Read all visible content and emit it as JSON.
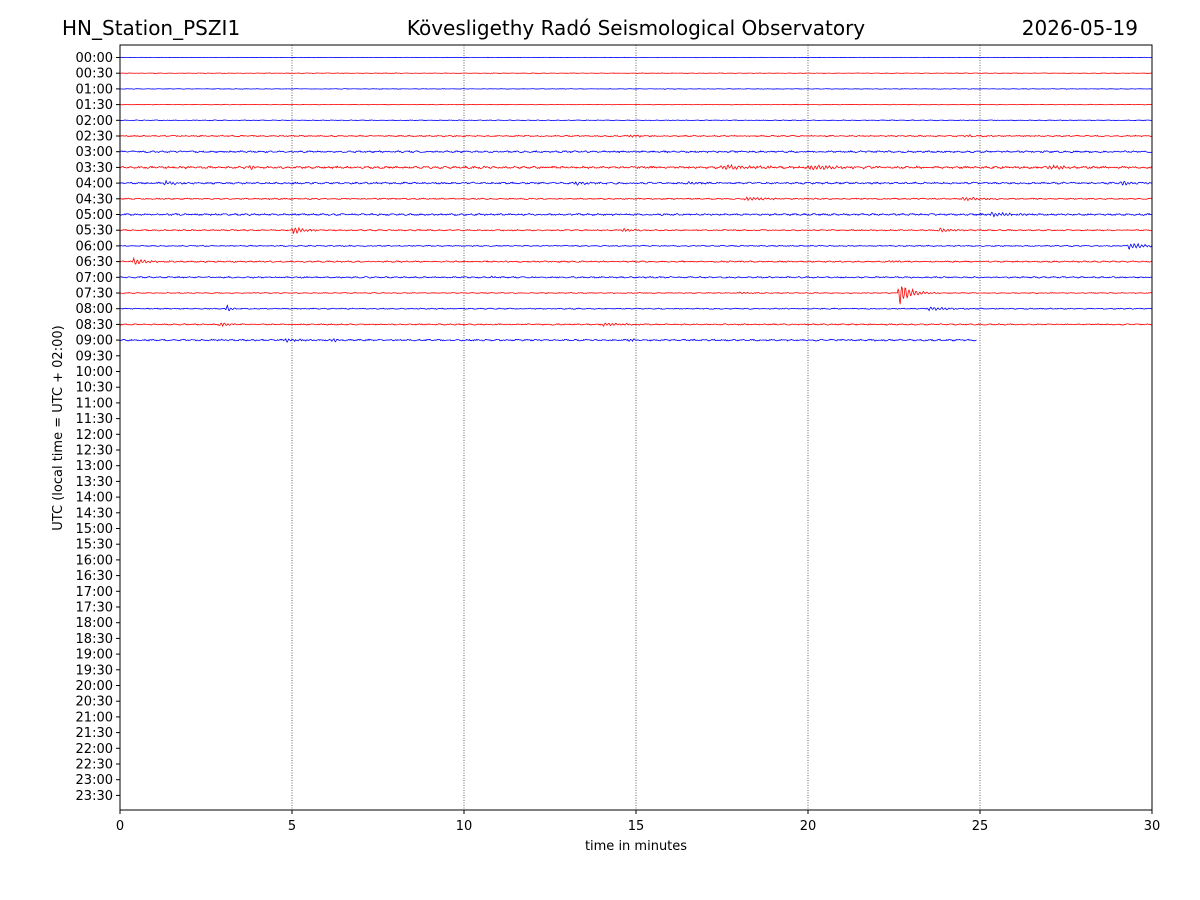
{
  "header": {
    "station": "HN_Station_PSZI1",
    "title": "Kövesligethy Radó Seismological Observatory",
    "date": "2026-05-19"
  },
  "chart_data": {
    "type": "line",
    "xlabel": "time in minutes",
    "ylabel": "UTC (local time = UTC + 02:00)",
    "xlim": [
      0,
      30
    ],
    "x_ticks": [
      0,
      5,
      10,
      15,
      20,
      25,
      30
    ],
    "grid": "vertical dotted lines at each x tick",
    "row_labels": [
      "00:00",
      "00:30",
      "01:00",
      "01:30",
      "02:00",
      "02:30",
      "03:00",
      "03:30",
      "04:00",
      "04:30",
      "05:00",
      "05:30",
      "06:00",
      "06:30",
      "07:00",
      "07:30",
      "08:00",
      "08:30",
      "09:00",
      "09:30",
      "10:00",
      "10:30",
      "11:00",
      "11:30",
      "12:00",
      "12:30",
      "13:00",
      "13:30",
      "14:00",
      "14:30",
      "15:00",
      "15:30",
      "16:00",
      "16:30",
      "17:00",
      "17:30",
      "18:00",
      "18:30",
      "19:00",
      "19:30",
      "20:00",
      "20:30",
      "21:00",
      "21:30",
      "22:00",
      "22:30",
      "23:00",
      "23:30"
    ],
    "colors": {
      "full_hour": "#0000ff",
      "half_hour": "#ff0000",
      "frame": "#000000"
    },
    "traces": [
      {
        "row": 0,
        "end_minute": 30,
        "noise": 0.2,
        "events": []
      },
      {
        "row": 1,
        "end_minute": 30,
        "noise": 0.3,
        "events": []
      },
      {
        "row": 2,
        "end_minute": 30,
        "noise": 0.3,
        "events": []
      },
      {
        "row": 3,
        "end_minute": 30,
        "noise": 0.3,
        "events": []
      },
      {
        "row": 4,
        "end_minute": 30,
        "noise": 0.4,
        "events": []
      },
      {
        "row": 5,
        "end_minute": 30,
        "noise": 0.7,
        "events": [
          {
            "t": 14.8,
            "amp": 1.5,
            "dur": 0.6
          },
          {
            "t": 24.5,
            "amp": 1.0,
            "dur": 1.0
          }
        ]
      },
      {
        "row": 6,
        "end_minute": 30,
        "noise": 1.0,
        "events": []
      },
      {
        "row": 7,
        "end_minute": 30,
        "noise": 1.2,
        "events": [
          {
            "t": 3.8,
            "amp": 3.5,
            "dur": 0.15
          },
          {
            "t": 17.5,
            "amp": 2.5,
            "dur": 1.5
          },
          {
            "t": 20.0,
            "amp": 2.5,
            "dur": 1.5
          },
          {
            "t": 27.0,
            "amp": 2.0,
            "dur": 1.0
          }
        ]
      },
      {
        "row": 8,
        "end_minute": 30,
        "noise": 1.0,
        "events": [
          {
            "t": 1.3,
            "amp": 2.5,
            "dur": 0.6
          },
          {
            "t": 13.2,
            "amp": 2.5,
            "dur": 0.5
          },
          {
            "t": 16.5,
            "amp": 1.5,
            "dur": 0.5
          },
          {
            "t": 29.1,
            "amp": 3.0,
            "dur": 0.5
          }
        ]
      },
      {
        "row": 9,
        "end_minute": 30,
        "noise": 0.7,
        "events": [
          {
            "t": 18.2,
            "amp": 2.0,
            "dur": 1.0
          },
          {
            "t": 24.5,
            "amp": 2.5,
            "dur": 0.8
          }
        ]
      },
      {
        "row": 10,
        "end_minute": 30,
        "noise": 1.0,
        "events": [
          {
            "t": 25.3,
            "amp": 2.5,
            "dur": 1.0
          }
        ]
      },
      {
        "row": 11,
        "end_minute": 30,
        "noise": 0.7,
        "events": [
          {
            "t": 5.0,
            "amp": 4.0,
            "dur": 0.6
          },
          {
            "t": 14.6,
            "amp": 2.0,
            "dur": 0.4
          },
          {
            "t": 23.8,
            "amp": 2.5,
            "dur": 0.5
          }
        ]
      },
      {
        "row": 12,
        "end_minute": 30,
        "noise": 0.6,
        "events": [
          {
            "t": 29.3,
            "amp": 4.0,
            "dur": 0.8
          }
        ]
      },
      {
        "row": 13,
        "end_minute": 30,
        "noise": 0.8,
        "events": [
          {
            "t": 0.4,
            "amp": 4.0,
            "dur": 0.6
          },
          {
            "t": 22.3,
            "amp": 1.5,
            "dur": 0.4
          }
        ]
      },
      {
        "row": 14,
        "end_minute": 30,
        "noise": 0.8,
        "events": [
          {
            "t": 10.8,
            "amp": 2.0,
            "dur": 0.2
          }
        ]
      },
      {
        "row": 15,
        "end_minute": 30,
        "noise": 0.5,
        "events": [
          {
            "t": 22.65,
            "amp": 13,
            "dur": 0.5
          },
          {
            "t": 18.0,
            "amp": 1.0,
            "dur": 0.6
          }
        ]
      },
      {
        "row": 16,
        "end_minute": 30,
        "noise": 0.6,
        "events": [
          {
            "t": 3.1,
            "amp": 4.0,
            "dur": 0.2
          },
          {
            "t": 23.5,
            "amp": 2.0,
            "dur": 1.0
          }
        ]
      },
      {
        "row": 17,
        "end_minute": 30,
        "noise": 0.7,
        "events": [
          {
            "t": 2.9,
            "amp": 2.5,
            "dur": 0.5
          },
          {
            "t": 14.0,
            "amp": 2.0,
            "dur": 1.0
          }
        ]
      },
      {
        "row": 18,
        "end_minute": 24.9,
        "noise": 0.9,
        "events": [
          {
            "t": 6.2,
            "amp": 3.0,
            "dur": 0.15
          },
          {
            "t": 14.8,
            "amp": 3.0,
            "dur": 0.15
          },
          {
            "t": 4.8,
            "amp": 1.8,
            "dur": 0.6
          }
        ]
      }
    ]
  }
}
